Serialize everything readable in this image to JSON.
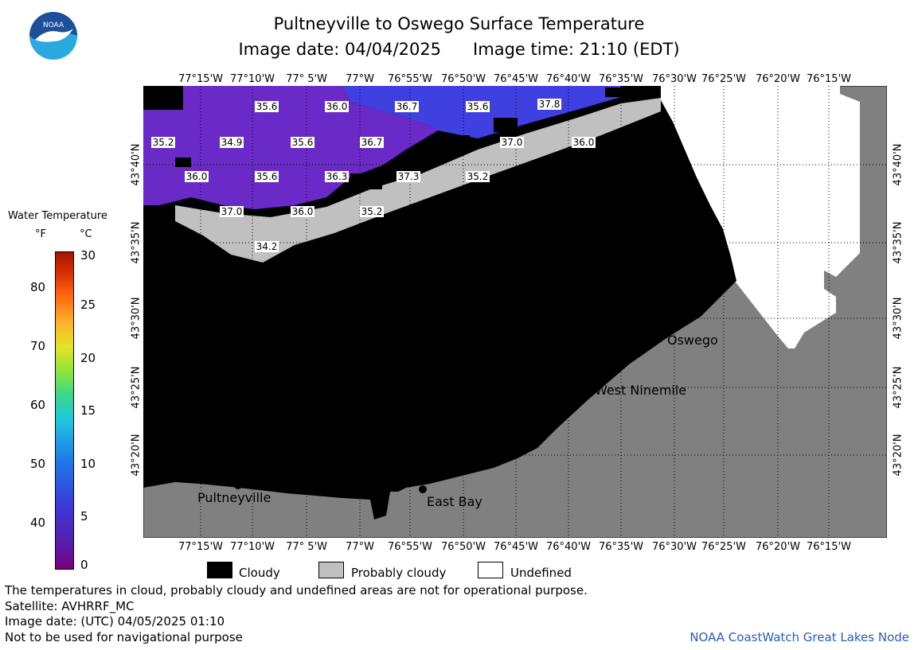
{
  "header": {
    "title": "Pultneyville to Oswego Surface Temperature",
    "image_date": "Image date: 04/04/2025",
    "image_time": "Image time: 21:10 (EDT)"
  },
  "logo": {
    "text": "NOAA",
    "colors": {
      "top": "#1d4f9a",
      "bottom": "#2aa8e0",
      "bird": "#ffffff"
    }
  },
  "axes": {
    "lon_labels": [
      "77°15'W",
      "77°10'W",
      "77° 5'W",
      "77°W",
      "76°55'W",
      "76°50'W",
      "76°45'W",
      "76°40'W",
      "76°35'W",
      "76°30'W",
      "76°25'W",
      "76°20'W",
      "76°15'W"
    ],
    "lat_labels": [
      "43°40'N",
      "43°35'N",
      "43°30'N",
      "43°25'N",
      "43°20'N"
    ]
  },
  "legend": {
    "title": "Water Temperature",
    "unit_f": "°F",
    "unit_c": "°C",
    "f_labels": [
      "80",
      "70",
      "60",
      "50",
      "40"
    ],
    "c_labels": [
      "30",
      "25",
      "20",
      "15",
      "10",
      "5",
      "0"
    ]
  },
  "key": {
    "cloudy": "Cloudy",
    "probably_cloudy": "Probably cloudy",
    "undefined": "Undefined"
  },
  "places": {
    "pultneyville": "Pultneyville",
    "east_bay": "East Bay",
    "west_ninemile": "West Ninemile",
    "oswego": "Oswego"
  },
  "temp_labels": [
    "35.6",
    "36.0",
    "36.7",
    "35.6",
    "37.8",
    "35.2",
    "34.9",
    "35.6",
    "36.7",
    "37.0",
    "36.0",
    "36.0",
    "35.6",
    "36.3",
    "37.3",
    "35.2",
    "37.0",
    "36.0",
    "35.2",
    "34.2"
  ],
  "footer": {
    "note": "The temperatures in cloud, probably cloudy and undefined areas are not for operational purpose.",
    "satellite": "Satellite: AVHRRF_MC",
    "utc_date": "Image date: (UTC) 04/05/2025  01:10",
    "nav_note": "Not to be used for navigational purpose",
    "credit": "NOAA CoastWatch Great Lakes Node"
  },
  "colors": {
    "water_purple": "#6a2ac8",
    "water_blue": "#4040e0",
    "land": "#808080",
    "cloud": "#000000",
    "probably_cloudy": "#c0c0c0",
    "undefined": "#ffffff"
  }
}
